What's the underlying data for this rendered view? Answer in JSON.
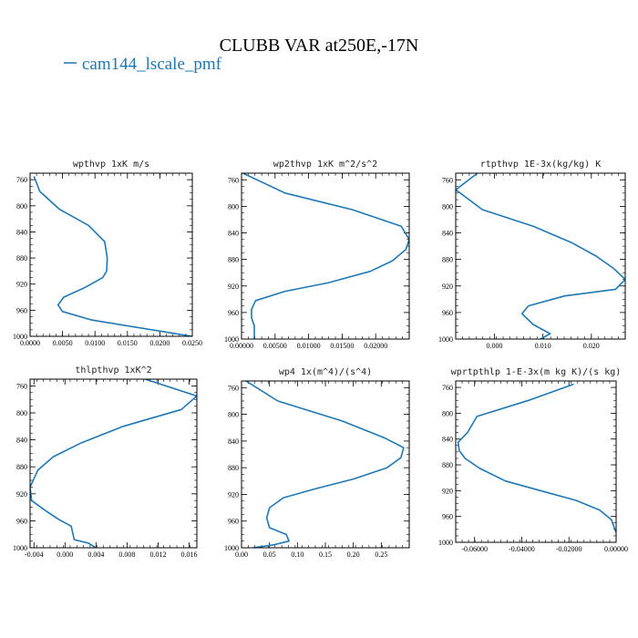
{
  "figure": {
    "title": "CLUBB VAR at250E,-17N",
    "legend": "cam144_lscale_pmf",
    "line_color": "#1f77b4"
  },
  "chart_data": [
    {
      "type": "line",
      "title": "wpthvp  1xK m/s",
      "xlim": [
        0,
        0.025
      ],
      "ylim": [
        1000,
        750
      ],
      "xticks": [
        "0.0000",
        "0.0050",
        "0.0100",
        "0.0150",
        "0.0200",
        "0.0250"
      ],
      "yticks": [
        760,
        800,
        840,
        880,
        920,
        960,
        1000
      ],
      "series": [
        {
          "x": [
            0.0006,
            0.0015,
            0.0045,
            0.009,
            0.0115,
            0.0119,
            0.0118,
            0.0112,
            0.0085,
            0.0052,
            0.0043,
            0.005,
            0.0095,
            0.025
          ],
          "y": [
            755,
            778,
            805,
            830,
            855,
            880,
            900,
            910,
            925,
            940,
            952,
            962,
            975,
            1000
          ]
        }
      ]
    },
    {
      "type": "line",
      "title": "wp2thvp  1xK m^2/s^2",
      "xlim": [
        0,
        0.025
      ],
      "ylim": [
        1000,
        750
      ],
      "xticks": [
        "0.00000",
        "0.00500",
        "0.01000",
        "0.01500",
        "0.02000"
      ],
      "yticks": [
        760,
        800,
        840,
        880,
        920,
        960,
        1000
      ],
      "series": [
        {
          "x": [
            0.0002,
            0.0065,
            0.0165,
            0.0238,
            0.025,
            0.0245,
            0.0225,
            0.0192,
            0.013,
            0.0065,
            0.0021,
            0.0015,
            0.0015,
            0.0019,
            0.0019
          ],
          "y": [
            750,
            780,
            805,
            830,
            850,
            865,
            882,
            898,
            915,
            928,
            942,
            955,
            968,
            980,
            1000
          ]
        }
      ]
    },
    {
      "type": "line",
      "title": "rtpthvp  1E-3x(kg/kg) K",
      "xlim": [
        -0.008,
        0.027
      ],
      "ylim": [
        1000,
        750
      ],
      "xticks": [
        "0.000",
        "0.010",
        "0.020"
      ],
      "yticks": [
        760,
        800,
        840,
        880,
        920,
        960,
        1000
      ],
      "series": [
        {
          "x": [
            -0.0035,
            -0.008,
            -0.0025,
            0.008,
            0.016,
            0.021,
            0.0245,
            0.027,
            0.025,
            0.0145,
            0.007,
            0.0057,
            0.008,
            0.0115,
            0.0095
          ],
          "y": [
            750,
            775,
            805,
            830,
            855,
            875,
            893,
            910,
            925,
            935,
            950,
            962,
            978,
            992,
            1000
          ]
        }
      ]
    },
    {
      "type": "line",
      "title": "thlpthvp  1xK^2",
      "xlim": [
        -0.0045,
        0.017
      ],
      "ylim": [
        1000,
        750
      ],
      "xticks": [
        "-0.004",
        "0.000",
        "0.004",
        "0.008",
        "0.012",
        "0.016"
      ],
      "yticks": [
        760,
        800,
        840,
        880,
        920,
        960,
        1000
      ],
      "series": [
        {
          "x": [
            0.009,
            0.017,
            0.015,
            0.0075,
            0.002,
            -0.0015,
            -0.0035,
            -0.0045,
            -0.0043,
            -0.0025,
            -0.0008,
            0.0008,
            0.001,
            0.0012,
            0.003,
            0.004
          ],
          "y": [
            745,
            775,
            795,
            820,
            845,
            865,
            885,
            910,
            930,
            945,
            958,
            968,
            978,
            988,
            993,
            1000
          ]
        }
      ]
    },
    {
      "type": "line",
      "title": "wp4  1x(m^4)/(s^4)",
      "xlim": [
        0,
        0.3
      ],
      "ylim": [
        1000,
        750
      ],
      "xticks": [
        "0.00",
        "0.05",
        "0.10",
        "0.15",
        "0.20",
        "0.25"
      ],
      "yticks": [
        760,
        800,
        840,
        880,
        920,
        960,
        1000
      ],
      "series": [
        {
          "x": [
            0.008,
            0.065,
            0.18,
            0.255,
            0.29,
            0.285,
            0.26,
            0.2,
            0.13,
            0.075,
            0.05,
            0.045,
            0.05,
            0.08,
            0.085,
            0.055,
            0.02
          ],
          "y": [
            750,
            780,
            810,
            835,
            850,
            865,
            880,
            897,
            912,
            925,
            940,
            955,
            970,
            980,
            990,
            996,
            1000
          ]
        }
      ]
    },
    {
      "type": "line",
      "title": "wprtpthlp  1-E-3x(m kg K)/(s kg)",
      "xlim": [
        -0.068,
        0
      ],
      "ylim": [
        1000,
        750
      ],
      "xticks": [
        "-0.06000",
        "-0.04000",
        "-0.02000",
        "0.00000"
      ],
      "yticks": [
        760,
        800,
        840,
        880,
        920,
        960,
        1000
      ],
      "series": [
        {
          "x": [
            -0.018,
            -0.037,
            -0.059,
            -0.063,
            -0.067,
            -0.0665,
            -0.064,
            -0.058,
            -0.047,
            -0.03,
            -0.017,
            -0.007,
            -0.002,
            0
          ],
          "y": [
            755,
            780,
            805,
            830,
            845,
            858,
            870,
            885,
            905,
            922,
            935,
            950,
            965,
            985
          ]
        }
      ]
    }
  ]
}
